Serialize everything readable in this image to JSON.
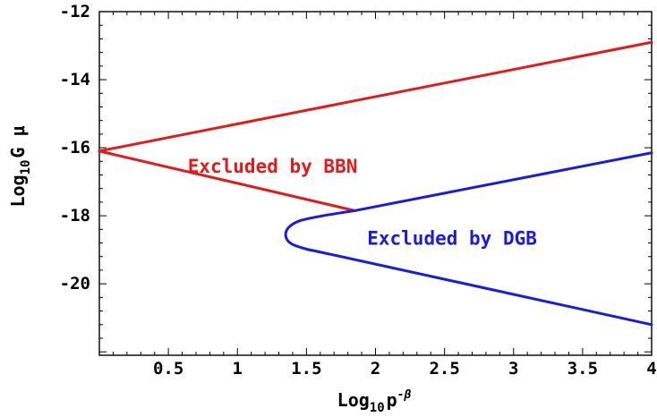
{
  "chart_data": {
    "type": "line",
    "title": "",
    "xlabel": {
      "base": "Log",
      "sub": "10",
      "main": "p",
      "sup": "-β"
    },
    "ylabel": {
      "base": "Log",
      "sub": "10",
      "main": "G μ"
    },
    "xlim": [
      0,
      4
    ],
    "ylim": [
      -22.1,
      -12
    ],
    "x_ticks": [
      0.5,
      1,
      1.5,
      2,
      2.5,
      3,
      3.5,
      4
    ],
    "x_tick_labels": [
      "0.5",
      "1",
      "1.5",
      "2",
      "2.5",
      "3",
      "3.5",
      "4"
    ],
    "y_ticks": [
      -20,
      -18,
      -16,
      -14,
      -12
    ],
    "y_tick_labels": [
      "-20",
      "-18",
      "-16",
      "-14",
      "-12"
    ],
    "grid": false,
    "series": [
      {
        "color": "#e41a1a",
        "points": [
          [
            0,
            -16.1
          ],
          [
            4,
            -12.9
          ]
        ]
      },
      {
        "color": "#e41a1a",
        "points": [
          [
            0,
            -16.1
          ],
          [
            1.85,
            -17.85
          ]
        ]
      },
      {
        "color": "#1a1ae0",
        "points": [
          [
            1.85,
            -17.85
          ],
          [
            1.62,
            -18.0
          ],
          [
            1.45,
            -18.15
          ],
          [
            1.37,
            -18.35
          ],
          [
            1.35,
            -18.6
          ],
          [
            1.39,
            -18.82
          ],
          [
            1.52,
            -19.0
          ],
          [
            1.75,
            -19.2
          ],
          [
            4,
            -21.2
          ]
        ]
      },
      {
        "color": "#1a1ae0",
        "points": [
          [
            1.85,
            -17.85
          ],
          [
            4,
            -16.15
          ]
        ]
      }
    ],
    "annotations": [
      {
        "text": "Excluded by BBN",
        "x": 0.64,
        "y": -16.73,
        "color": "#e41a1a"
      },
      {
        "text": "Excluded by DGB",
        "x": 1.94,
        "y": -18.85,
        "color": "#1a1ae0"
      }
    ]
  }
}
